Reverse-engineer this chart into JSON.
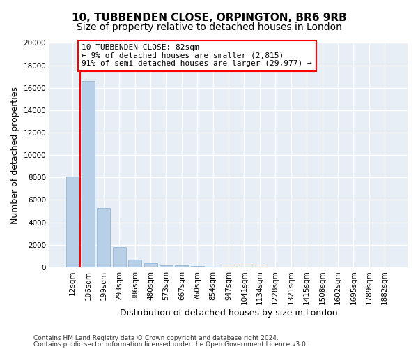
{
  "title_line1": "10, TUBBENDEN CLOSE, ORPINGTON, BR6 9RB",
  "title_line2": "Size of property relative to detached houses in London",
  "xlabel": "Distribution of detached houses by size in London",
  "ylabel": "Number of detached properties",
  "categories": [
    "12sqm",
    "106sqm",
    "199sqm",
    "293sqm",
    "386sqm",
    "480sqm",
    "573sqm",
    "667sqm",
    "760sqm",
    "854sqm",
    "947sqm",
    "1041sqm",
    "1134sqm",
    "1228sqm",
    "1321sqm",
    "1415sqm",
    "1508sqm",
    "1602sqm",
    "1695sqm",
    "1789sqm",
    "1882sqm"
  ],
  "values": [
    8100,
    16600,
    5300,
    1800,
    650,
    350,
    200,
    150,
    120,
    80,
    60,
    40,
    30,
    20,
    15,
    10,
    8,
    6,
    5,
    4,
    3
  ],
  "bar_color": "#b8cfe8",
  "bar_edge_color": "#8ab0d0",
  "annotation_box_text": "10 TUBBENDEN CLOSE: 82sqm\n← 9% of detached houses are smaller (2,815)\n91% of semi-detached houses are larger (29,977) →",
  "red_line_x": 0.5,
  "ylim": [
    0,
    20000
  ],
  "yticks": [
    0,
    2000,
    4000,
    6000,
    8000,
    10000,
    12000,
    14000,
    16000,
    18000,
    20000
  ],
  "bg_color": "#e8eef5",
  "footer_line1": "Contains HM Land Registry data © Crown copyright and database right 2024.",
  "footer_line2": "Contains public sector information licensed under the Open Government Licence v3.0.",
  "grid_color": "#ffffff",
  "title_fontsize": 11,
  "subtitle_fontsize": 10,
  "axis_label_fontsize": 9,
  "tick_fontsize": 7.5,
  "annot_fontsize": 8
}
